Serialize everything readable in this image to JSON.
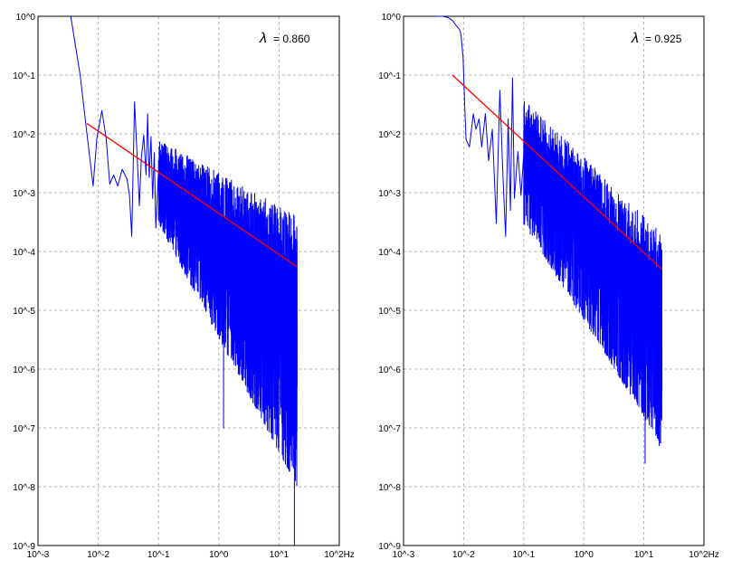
{
  "colors": {
    "spectrum": "#0000ff",
    "fit": "#ff0000",
    "grid": "#b4b4b4",
    "frame": "#000000"
  },
  "chart_data": [
    {
      "type": "line",
      "scale": "log-log",
      "x_unit": "Hz",
      "annotation": {
        "symbol": "λ",
        "text": "= 0.860",
        "value": 0.86
      },
      "xlim": [
        0.001,
        100
      ],
      "ylim": [
        1e-09,
        1
      ],
      "grid": true,
      "x_ticks": [
        "10^-3",
        "10^-2",
        "10^-1",
        "10^0",
        "10^1",
        "10^2Hz"
      ],
      "y_ticks": [
        "10^0",
        "10^-1",
        "10^-2",
        "10^-3",
        "10^-4",
        "10^-5",
        "10^-6",
        "10^-7",
        "10^-8",
        "10^-9"
      ],
      "series": [
        {
          "role": "spectrum",
          "x": [
            0.0035,
            0.005,
            0.0065,
            0.0082,
            0.0095,
            0.0115,
            0.0135,
            0.0155,
            0.018,
            0.021,
            0.025,
            0.03,
            0.033,
            0.036,
            0.04,
            0.044,
            0.048,
            0.052,
            0.057,
            0.062,
            0.066,
            0.07,
            0.075,
            0.08,
            0.085,
            0.09,
            0.1
          ],
          "y": [
            1.0,
            0.1,
            0.01,
            0.0013,
            0.0085,
            0.025,
            0.0085,
            0.0014,
            0.002,
            0.0013,
            0.0025,
            0.0017,
            0.0009,
            0.00018,
            0.035,
            0.0045,
            0.0006,
            0.004,
            0.0095,
            0.002,
            0.022,
            0.0018,
            0.009,
            0.0008,
            0.0048,
            0.00025,
            0.0025
          ],
          "noise_band": {
            "x_range": [
              0.1,
              20
            ],
            "upper_start": 0.008,
            "upper_end": 0.0004,
            "lower_start": 0.0003,
            "lower_end": 1e-08,
            "deepest_dips": [
              {
                "x": 1.2,
                "y": 1e-07
              },
              {
                "x": 18,
                "y": 1e-09
              }
            ]
          }
        },
        {
          "role": "fit",
          "x": [
            0.0065,
            20
          ],
          "y": [
            0.015,
            5.5e-05
          ]
        }
      ]
    },
    {
      "type": "line",
      "scale": "log-log",
      "x_unit": "Hz",
      "annotation": {
        "symbol": "λ",
        "text": "= 0.925",
        "value": 0.925
      },
      "xlim": [
        0.001,
        100
      ],
      "ylim": [
        1e-09,
        1
      ],
      "grid": true,
      "x_ticks": [
        "10^-3",
        "10^-2",
        "10^-1",
        "10^0",
        "10^1",
        "10^2Hz"
      ],
      "y_ticks": [
        "10^0",
        "10^-1",
        "10^-2",
        "10^-3",
        "10^-4",
        "10^-5",
        "10^-6",
        "10^-7",
        "10^-8",
        "10^-9"
      ],
      "series": [
        {
          "role": "spectrum",
          "x": [
            0.0035,
            0.0045,
            0.0055,
            0.0065,
            0.0075,
            0.0085,
            0.009,
            0.0098,
            0.0105,
            0.011,
            0.0125,
            0.0145,
            0.016,
            0.018,
            0.02,
            0.023,
            0.026,
            0.03,
            0.035,
            0.04,
            0.045,
            0.05,
            0.055,
            0.06,
            0.065,
            0.07,
            0.08,
            0.09,
            0.1
          ],
          "y": [
            1.0,
            1.0,
            0.95,
            0.85,
            0.7,
            0.6,
            0.5,
            0.2,
            0.025,
            0.008,
            0.006,
            0.022,
            0.012,
            0.018,
            0.006,
            0.022,
            0.0035,
            0.012,
            0.0003,
            0.055,
            0.002,
            0.00018,
            0.018,
            0.0005,
            0.09,
            0.0008,
            0.005,
            0.0009,
            0.0045
          ],
          "noise_band": {
            "x_range": [
              0.1,
              20
            ],
            "upper_start": 0.04,
            "upper_end": 0.0002,
            "lower_start": 0.0003,
            "lower_end": 5e-08,
            "deepest_dips": [
              {
                "x": 10.5,
                "y": 2.5e-08
              },
              {
                "x": 18,
                "y": 5e-08
              }
            ]
          }
        },
        {
          "role": "fit",
          "x": [
            0.0065,
            20
          ],
          "y": [
            0.1,
            5e-05
          ]
        }
      ]
    }
  ]
}
